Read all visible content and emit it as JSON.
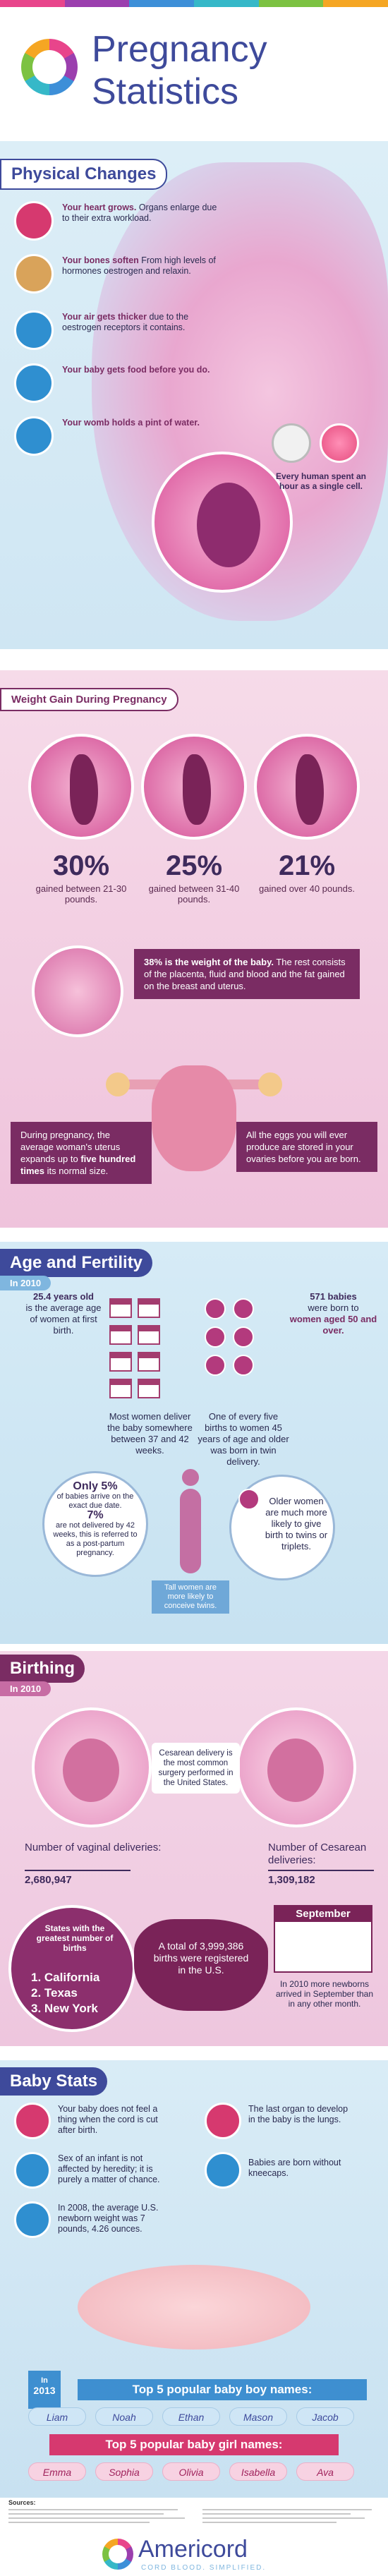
{
  "header": {
    "title_line1": "Pregnancy",
    "title_line2": "Statistics",
    "rainbow_colors": [
      "#e8458b",
      "#9b3fae",
      "#3d8fd8",
      "#36b8c8",
      "#7cc242",
      "#f5a623"
    ]
  },
  "physical": {
    "heading": "Physical Changes",
    "facts": [
      {
        "icon": "heart-icon",
        "bold": "Your heart grows.",
        "text": "Organs enlarge due to their extra workload."
      },
      {
        "icon": "bone-icon",
        "bold": "Your bones soften",
        "text": "From high levels of hormones oestrogen and relaxin."
      },
      {
        "icon": "air-icon",
        "bold": "Your air gets thicker",
        "text": "due to the oestrogen receptors it contains."
      },
      {
        "icon": "baby-icon",
        "bold": "Your baby gets food before you do.",
        "text": ""
      },
      {
        "icon": "water-drop-icon",
        "bold": "Your womb holds a pint of water.",
        "text": ""
      }
    ],
    "clock_note": "Every human spent an hour as a single cell."
  },
  "weight": {
    "heading": "Weight Gain During Pregnancy",
    "stats": [
      {
        "pct": "30%",
        "desc": "gained between 21-30 pounds."
      },
      {
        "pct": "25%",
        "desc": "gained between 31-40 pounds."
      },
      {
        "pct": "21%",
        "desc": "gained over 40 pounds."
      }
    ],
    "baby_weight_bold": "38% is the weight of the baby.",
    "baby_weight_text": "The rest consists of the placenta, fluid and blood and the fat gained on the breast and uterus.",
    "uterus_text_pre": "During pregnancy, the average woman's uterus expands up to",
    "uterus_text_bold": "five hundred times",
    "uterus_text_post": "its normal size.",
    "eggs_text": "All the eggs you will ever produce are stored in your ovaries before you are born."
  },
  "age": {
    "heading": "Age and Fertility",
    "year_tag": "In 2010",
    "avg_age_bold": "25.4 years old",
    "avg_age_text": "is the average age of women at first birth.",
    "babies_bold": "571 babies",
    "babies_text": "were born to",
    "babies_bold2": "women aged 50 and over.",
    "deliver_text": "Most women deliver the baby somewhere between 37 and 42 weeks.",
    "twin_text": "One of every five births to women 45 years of age and older was born in twin delivery.",
    "due_pct": "Only 5%",
    "due_text": "of babies arrive on the exact due date.",
    "post_pct": "7%",
    "post_text": "are not delivered by 42 weeks, this is referred to as a post-partum pregnancy.",
    "older_text": "Older women are much more likely to give birth to twins or triplets.",
    "tall_text": "Tall women are more likely to conceive twins."
  },
  "birthing": {
    "heading": "Birthing",
    "year_tag": "In 2010",
    "cesarean_note": "Cesarean delivery is the most common surgery performed in the United States.",
    "vaginal_label": "Number of vaginal deliveries:",
    "vaginal_value": "2,680,947",
    "cesarean_label": "Number of Cesarean deliveries:",
    "cesarean_value": "1,309,182",
    "states_title": "States with the greatest number of births",
    "states": [
      "1. California",
      "2. Texas",
      "3. New York"
    ],
    "total_text": "A total of 3,999,386 births were registered in the U.S.",
    "sept_label": "September",
    "sept_text": "In 2010 more newborns arrived in September than in any other month."
  },
  "stats": {
    "heading": "Baby Stats",
    "items": [
      {
        "icon": "scissors-icon",
        "text": "Your baby does not feel a thing when the cord is cut after birth."
      },
      {
        "icon": "lungs-icon",
        "text": "The last organ to develop in the baby is the lungs."
      },
      {
        "icon": "dna-icon",
        "text": "Sex of an infant is not affected by heredity; it is purely a matter of chance."
      },
      {
        "icon": "leg-icon",
        "text": "Babies are born without kneecaps."
      },
      {
        "icon": "scale-icon",
        "text": "In 2008, the average U.S. newborn weight was 7 pounds, 4.26 ounces."
      }
    ],
    "year_tag_line1": "In",
    "year_tag_line2": "2013",
    "boys_title": "Top 5 popular baby boy names:",
    "boys": [
      "Liam",
      "Noah",
      "Ethan",
      "Mason",
      "Jacob"
    ],
    "girls_title": "Top 5 popular baby girl names:",
    "girls": [
      "Emma",
      "Sophia",
      "Olivia",
      "Isabella",
      "Ava"
    ]
  },
  "footer": {
    "sources_label": "Sources:",
    "brand": "Americord",
    "tagline": "CORD BLOOD. SIMPLIFIED."
  }
}
